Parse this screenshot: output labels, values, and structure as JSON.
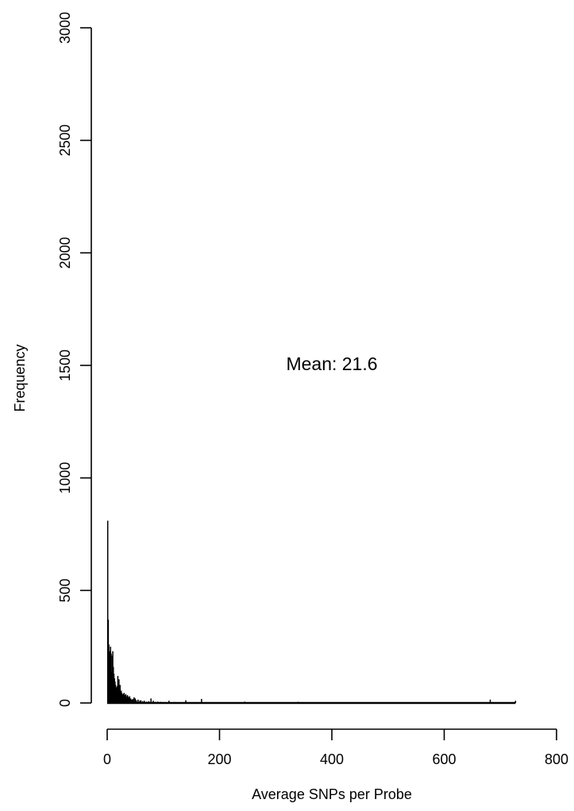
{
  "chart_data": {
    "type": "bar",
    "title": "",
    "xlabel": "Average SNPs per Probe",
    "ylabel": "Frequency",
    "xlim": [
      0,
      800
    ],
    "ylim": [
      0,
      3000
    ],
    "x_ticks": [
      "0",
      "200",
      "400",
      "600",
      "800"
    ],
    "y_ticks": [
      "0",
      "500",
      "1000",
      "1500",
      "2000",
      "2500",
      "3000"
    ],
    "annotation": "Mean:  21.6",
    "annotation_position": {
      "x": 400,
      "y": 1500
    },
    "grid": false,
    "legend": "none",
    "bar_color": "#000000",
    "series": [
      {
        "x": [
          1,
          2,
          3,
          4,
          5,
          6,
          7,
          8,
          9,
          10,
          11,
          12,
          13,
          14,
          15,
          16,
          17,
          18,
          19,
          20,
          21,
          22,
          23,
          24,
          25,
          26,
          27,
          28,
          29,
          30,
          31,
          32,
          33,
          34,
          35,
          36,
          37,
          38,
          39,
          40,
          42,
          44,
          46,
          48,
          50,
          52,
          55,
          58,
          60,
          63,
          66,
          70,
          74,
          78,
          82,
          86,
          90,
          95,
          100,
          110,
          120,
          140,
          160,
          168,
          180,
          200,
          220,
          245,
          260,
          290,
          340,
          380,
          420,
          500,
          600,
          682,
          727
        ],
        "y": [
          810,
          370,
          260,
          230,
          160,
          250,
          220,
          140,
          210,
          230,
          160,
          130,
          110,
          95,
          80,
          70,
          60,
          75,
          120,
          90,
          105,
          60,
          80,
          50,
          55,
          45,
          40,
          35,
          40,
          45,
          30,
          35,
          40,
          30,
          25,
          35,
          30,
          25,
          20,
          30,
          20,
          15,
          18,
          25,
          20,
          12,
          15,
          10,
          12,
          8,
          10,
          6,
          8,
          20,
          10,
          5,
          6,
          5,
          4,
          10,
          4,
          12,
          3,
          18,
          3,
          3,
          2,
          6,
          3,
          2,
          5,
          2,
          2,
          2,
          2,
          15,
          10
        ]
      }
    ]
  }
}
